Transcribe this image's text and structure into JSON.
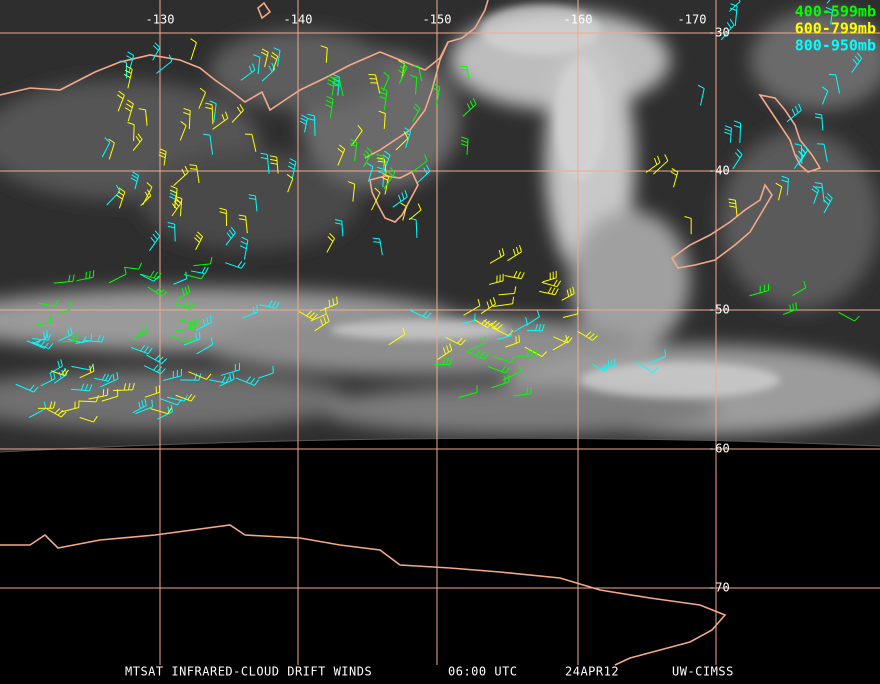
{
  "map": {
    "longitude_labels": [
      "-130",
      "-140",
      "-150",
      "-160",
      "-170"
    ],
    "latitude_labels": [
      "-30",
      "-40",
      "-50",
      "-60",
      "-70"
    ]
  },
  "legend": [
    {
      "label": "400-599mb",
      "color": "#00ff00"
    },
    {
      "label": "600-799mb",
      "color": "#ffff00"
    },
    {
      "label": "800-950mb",
      "color": "#00ffff"
    }
  ],
  "footer": {
    "product": "MTSAT INFRARED-CLOUD DRIFT WINDS",
    "time": "06:00 UTC",
    "date": "24APR12",
    "source": "UW-CIMSS"
  }
}
